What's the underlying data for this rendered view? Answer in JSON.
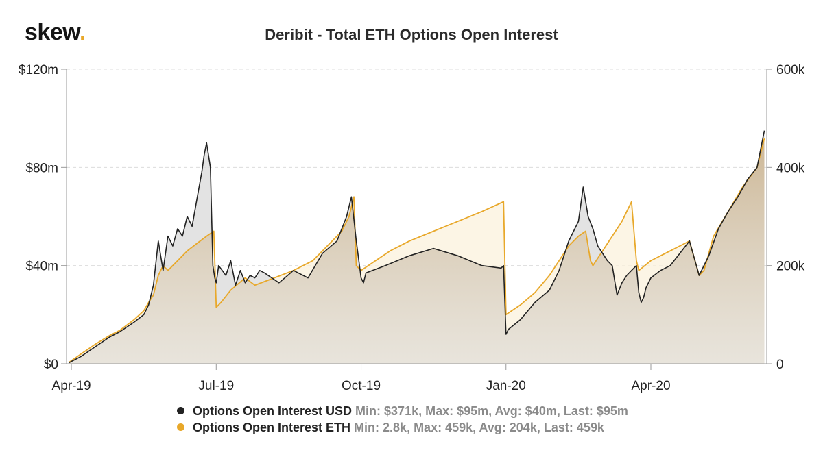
{
  "logo": {
    "text": "skew",
    "dot": "."
  },
  "chart_data": {
    "type": "line",
    "title": "Deribit - Total ETH Options Open Interest",
    "x_ticks": [
      "Apr-19",
      "Jul-19",
      "Oct-19",
      "Jan-20",
      "Apr-20"
    ],
    "x_tick_months": [
      0,
      3,
      6,
      9,
      12
    ],
    "x_range_months": [
      -0.1,
      14.4
    ],
    "y_left": {
      "label": "USD",
      "ticks": [
        "$0",
        "$40m",
        "$80m",
        "$120m"
      ],
      "values": [
        0,
        40,
        80,
        120
      ],
      "range": [
        0,
        120
      ],
      "unit": "m"
    },
    "y_right": {
      "label": "ETH",
      "ticks": [
        "0",
        "200k",
        "400k",
        "600k"
      ],
      "values": [
        0,
        200,
        400,
        600
      ],
      "range": [
        0,
        600
      ],
      "unit": "k"
    },
    "grid": true,
    "series": [
      {
        "name": "Options Open Interest USD",
        "axis": "left",
        "color": "#222222",
        "x": [
          -0.05,
          0.2,
          0.5,
          0.8,
          1.0,
          1.3,
          1.5,
          1.6,
          1.7,
          1.8,
          1.9,
          2.0,
          2.1,
          2.2,
          2.3,
          2.4,
          2.5,
          2.6,
          2.7,
          2.75,
          2.8,
          2.88,
          2.93,
          2.97,
          3.0,
          3.05,
          3.2,
          3.3,
          3.4,
          3.5,
          3.6,
          3.7,
          3.8,
          3.9,
          4.0,
          4.3,
          4.6,
          4.9,
          5.2,
          5.5,
          5.7,
          5.8,
          5.9,
          6.0,
          6.05,
          6.1,
          6.5,
          7.0,
          7.5,
          8.0,
          8.5,
          8.9,
          8.95,
          9.0,
          9.05,
          9.3,
          9.6,
          9.9,
          10.1,
          10.3,
          10.5,
          10.6,
          10.7,
          10.8,
          10.9,
          11.0,
          11.1,
          11.2,
          11.3,
          11.4,
          11.5,
          11.6,
          11.7,
          11.75,
          11.8,
          11.85,
          11.9,
          12.0,
          12.2,
          12.4,
          12.6,
          12.8,
          13.0,
          13.2,
          13.4,
          13.6,
          13.8,
          14.0,
          14.2,
          14.35
        ],
        "values": [
          0.4,
          3,
          7,
          11,
          13,
          17,
          20,
          24,
          32,
          50,
          38,
          52,
          48,
          55,
          52,
          60,
          56,
          67,
          78,
          85,
          90,
          80,
          40,
          35,
          33,
          40,
          36,
          42,
          32,
          38,
          33,
          36,
          35,
          38,
          37,
          33,
          38,
          35,
          45,
          50,
          60,
          68,
          50,
          35,
          33,
          37,
          40,
          44,
          47,
          44,
          40,
          39,
          40,
          12,
          14,
          18,
          25,
          30,
          38,
          50,
          58,
          72,
          60,
          55,
          48,
          45,
          42,
          40,
          28,
          33,
          36,
          38,
          40,
          29,
          25,
          27,
          31,
          35,
          38,
          40,
          45,
          50,
          36,
          44,
          55,
          62,
          68,
          75,
          80,
          95
        ]
      },
      {
        "name": "Options Open Interest ETH",
        "axis": "right",
        "color": "#e8a82a",
        "x": [
          -0.05,
          0.2,
          0.5,
          0.8,
          1.0,
          1.3,
          1.5,
          1.6,
          1.7,
          1.8,
          1.9,
          2.0,
          2.2,
          2.4,
          2.6,
          2.8,
          2.95,
          3.0,
          3.1,
          3.3,
          3.6,
          3.8,
          4.2,
          4.6,
          5.0,
          5.3,
          5.6,
          5.75,
          5.85,
          5.9,
          6.0,
          6.3,
          6.6,
          7.0,
          7.5,
          8.0,
          8.5,
          8.95,
          9.0,
          9.3,
          9.6,
          9.9,
          10.1,
          10.3,
          10.5,
          10.65,
          10.75,
          10.8,
          11.0,
          11.2,
          11.4,
          11.55,
          11.6,
          11.7,
          11.75,
          12.0,
          12.4,
          12.8,
          13.0,
          13.1,
          13.3,
          13.6,
          13.9,
          14.2,
          14.35
        ],
        "values": [
          2.8,
          20,
          40,
          58,
          68,
          90,
          108,
          125,
          140,
          180,
          200,
          190,
          210,
          230,
          245,
          260,
          270,
          115,
          125,
          150,
          175,
          160,
          175,
          190,
          210,
          240,
          270,
          300,
          340,
          200,
          190,
          210,
          230,
          250,
          270,
          290,
          310,
          330,
          100,
          120,
          145,
          180,
          210,
          240,
          260,
          270,
          210,
          200,
          230,
          260,
          290,
          320,
          330,
          210,
          190,
          210,
          230,
          250,
          180,
          190,
          260,
          310,
          360,
          400,
          459
        ]
      }
    ],
    "legend": {
      "position": "bottom",
      "items": [
        {
          "name": "Options Open Interest USD",
          "stats": "Min: $371k, Max: $95m, Avg: $40m, Last: $95m"
        },
        {
          "name": "Options Open Interest ETH",
          "stats": "Min: 2.8k, Max: 459k, Avg: 204k, Last: 459k"
        }
      ]
    }
  }
}
